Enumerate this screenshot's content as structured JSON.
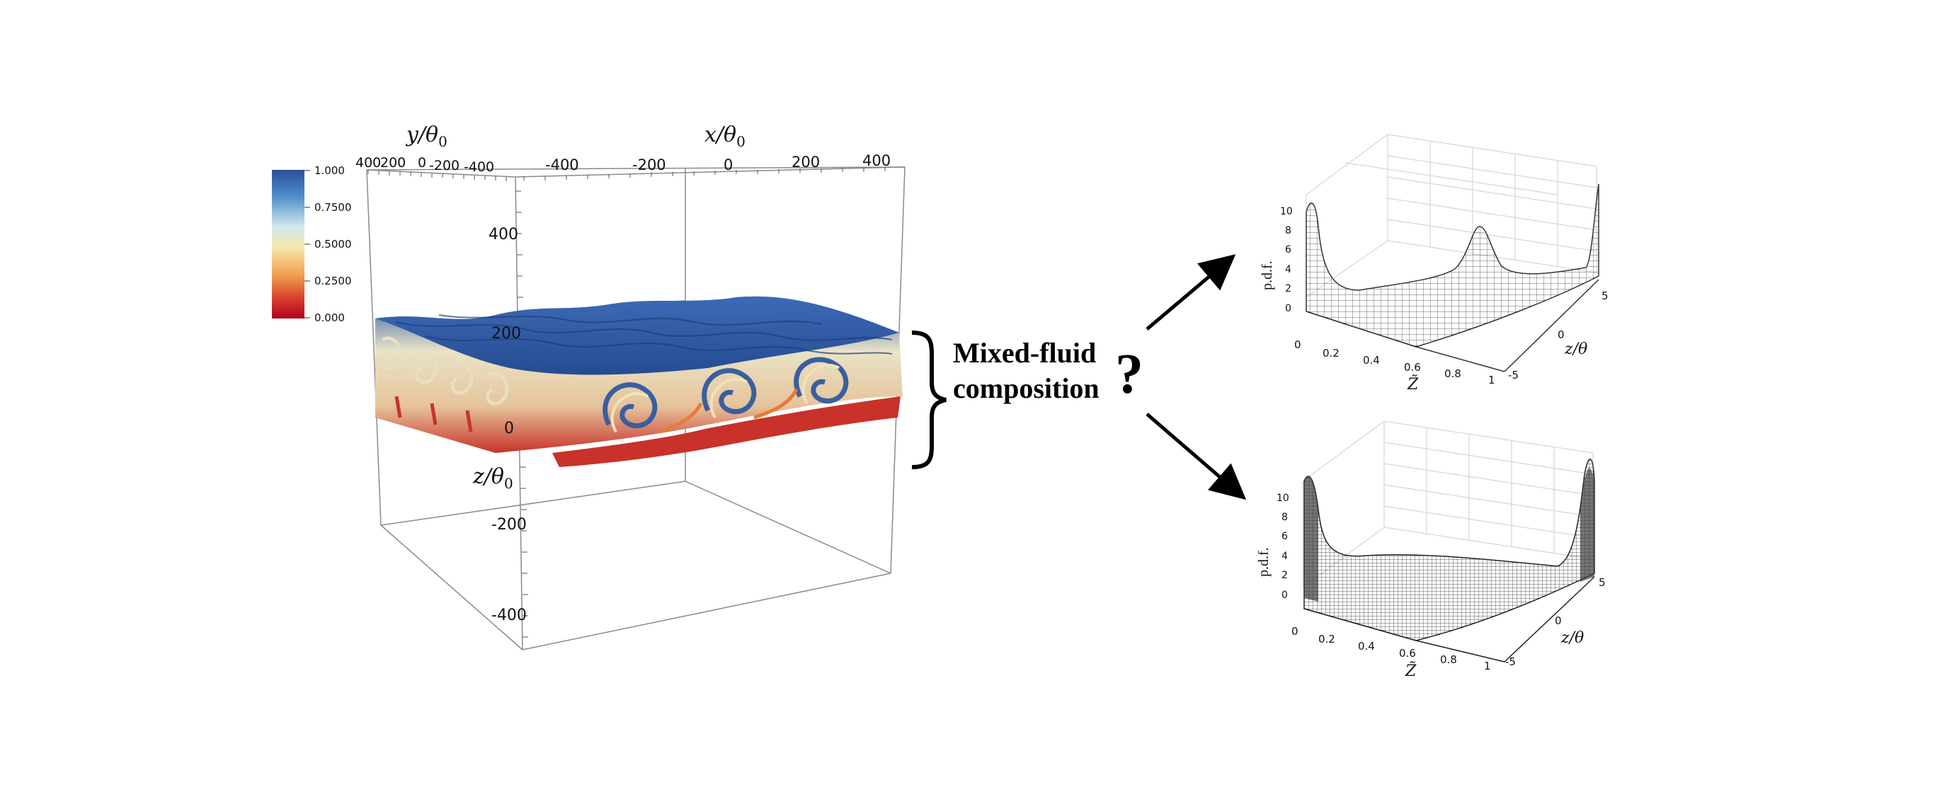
{
  "colorbar": {
    "ticks": [
      "1.000",
      "0.7500",
      "0.5000",
      "0.2500",
      "0.000"
    ],
    "colors": [
      "#2a4f9b",
      "#4f8fc8",
      "#cfe8ef",
      "#f6e9ae",
      "#f1a252",
      "#d9432b",
      "#b3001f"
    ]
  },
  "left_plot": {
    "y_axis_label": "y/θ",
    "y_axis_sub": "0",
    "x_axis_label": "x/θ",
    "x_axis_sub": "0",
    "z_axis_label": "z/θ",
    "z_axis_sub": "0",
    "y_ticks": [
      "400",
      "200",
      "0",
      "-200",
      "-400"
    ],
    "x_ticks": [
      "-400",
      "-200",
      "0",
      "200",
      "400"
    ],
    "z_ticks": [
      "400",
      "200",
      "0",
      "-200",
      "-400"
    ],
    "field_colors": {
      "top": "#2f5aa6",
      "light": "#e8e2c4",
      "bottom": "#c8322a"
    }
  },
  "center": {
    "line1": "Mixed-fluid",
    "line2": "composition",
    "question": "?"
  },
  "pdf_plots": [
    {
      "ylabel": "p.d.f.",
      "xlabel": "Z̃",
      "zlabel": "z/θ",
      "y_ticks": [
        "10",
        "8",
        "6",
        "4",
        "2",
        "0"
      ],
      "x_ticks": [
        "0",
        "0.2",
        "0.4",
        "0.6",
        "0.8",
        "1"
      ],
      "z_ticks": [
        "5",
        "0",
        "-5"
      ]
    },
    {
      "ylabel": "p.d.f.",
      "xlabel": "Z̃",
      "zlabel": "z/θ",
      "y_ticks": [
        "10",
        "8",
        "6",
        "4",
        "2",
        "0"
      ],
      "x_ticks": [
        "0",
        "0.2",
        "0.4",
        "0.6",
        "0.8",
        "1"
      ],
      "z_ticks": [
        "5",
        "0",
        "-5"
      ]
    }
  ]
}
